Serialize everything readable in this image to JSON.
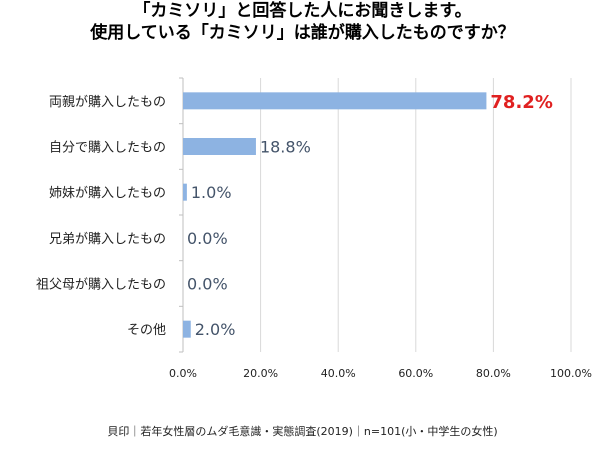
{
  "title_line1": "「カミソリ」と回答した人にお聞きします。",
  "title_line2": "使用している「カミソリ」は誰が購入したものですか？",
  "footer": "貝印｜若年女性層のムダ毛意識・実態調査(2019)｜n=101(小・中学生の女性)",
  "chart_data": {
    "type": "bar",
    "orientation": "horizontal",
    "categories": [
      "両親が購入したもの",
      "自分で購入したもの",
      "姉妹が購入したもの",
      "兄弟が購入したもの",
      "祖父母が購入したもの",
      "その他"
    ],
    "values": [
      78.2,
      18.8,
      1.0,
      0.0,
      0.0,
      2.0
    ],
    "value_labels": [
      "78.2%",
      "18.8%",
      "1.0%",
      "0.0%",
      "0.0%",
      "2.0%"
    ],
    "xlim": [
      0,
      100
    ],
    "xticks": [
      "0.0%",
      "20.0%",
      "40.0%",
      "60.0%",
      "80.0%",
      "100.0%"
    ],
    "grid": true,
    "bar_color": "#8db3e2",
    "highlight_color": "#e02020",
    "label_color": "#44546a",
    "grid_color": "#d9d9d9"
  }
}
